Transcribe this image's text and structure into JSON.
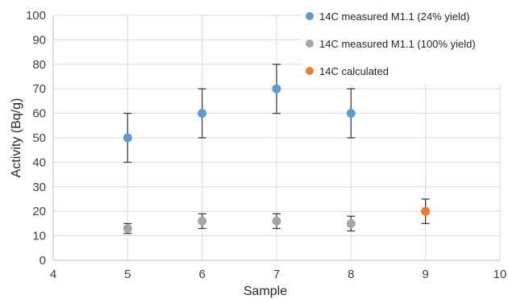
{
  "chart_data": {
    "type": "scatter",
    "xlabel": "Sample",
    "ylabel": "Activity (Bq/g)",
    "xlim": [
      4,
      10
    ],
    "ylim": [
      0,
      100
    ],
    "x_ticks": [
      4,
      5,
      6,
      7,
      8,
      9,
      10
    ],
    "y_ticks": [
      0,
      10,
      20,
      30,
      40,
      50,
      60,
      70,
      80,
      90,
      100
    ],
    "grid": "vertical-and-horizontal",
    "legend_position": "top-right",
    "series": [
      {
        "name": "14C measured M1.1 (24% yield)",
        "color": "#5b9bd5",
        "points": [
          {
            "x": 5,
            "y": 50,
            "err_low": 10,
            "err_high": 10
          },
          {
            "x": 6,
            "y": 60,
            "err_low": 10,
            "err_high": 10
          },
          {
            "x": 7,
            "y": 70,
            "err_low": 10,
            "err_high": 10
          },
          {
            "x": 8,
            "y": 60,
            "err_low": 10,
            "err_high": 10
          }
        ]
      },
      {
        "name": "14C measured M1.1 (100% yield)",
        "color": "#a5a5a5",
        "points": [
          {
            "x": 5,
            "y": 13,
            "err_low": 2,
            "err_high": 2
          },
          {
            "x": 6,
            "y": 16,
            "err_low": 3,
            "err_high": 3
          },
          {
            "x": 7,
            "y": 16,
            "err_low": 3,
            "err_high": 3
          },
          {
            "x": 8,
            "y": 15,
            "err_low": 3,
            "err_high": 3
          }
        ]
      },
      {
        "name": "14C calculated",
        "color": "#ed7d31",
        "points": [
          {
            "x": 9,
            "y": 20,
            "err_low": 5,
            "err_high": 5
          }
        ]
      }
    ]
  }
}
